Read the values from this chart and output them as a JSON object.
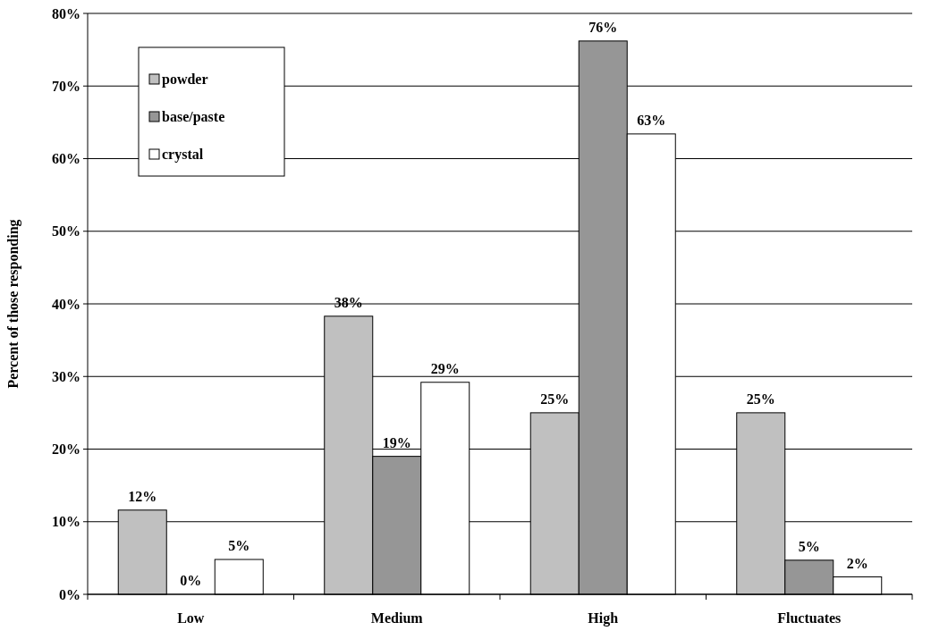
{
  "chart_data": {
    "type": "bar",
    "ylabel": "Percent of those responding",
    "categories": [
      "Low",
      "Medium",
      "High",
      "Fluctuates"
    ],
    "series": [
      {
        "name": "powder",
        "color": "#c0c0c0",
        "values": [
          11.6,
          38.3,
          25,
          25
        ],
        "value_labels": [
          "12%",
          "38%",
          "25%",
          "25%"
        ]
      },
      {
        "name": "base/paste",
        "color": "#969696",
        "values": [
          0,
          19,
          76.2,
          4.7
        ],
        "value_labels": [
          "0%",
          "19%",
          "76%",
          "5%"
        ]
      },
      {
        "name": "crystal",
        "color": "#ffffff",
        "values": [
          4.8,
          29.2,
          63.4,
          2.4
        ],
        "value_labels": [
          "5%",
          "29%",
          "63%",
          "2%"
        ]
      }
    ],
    "ylim": [
      0,
      80
    ],
    "yticks": [
      {
        "value": 0,
        "label": "0%"
      },
      {
        "value": 10,
        "label": "10%"
      },
      {
        "value": 20,
        "label": "20%"
      },
      {
        "value": 30,
        "label": "30%"
      },
      {
        "value": 40,
        "label": "40%"
      },
      {
        "value": 50,
        "label": "50%"
      },
      {
        "value": 60,
        "label": "60%"
      },
      {
        "value": 70,
        "label": "70%"
      },
      {
        "value": 80,
        "label": "80%"
      }
    ],
    "grid": "y",
    "legend": "top left"
  }
}
